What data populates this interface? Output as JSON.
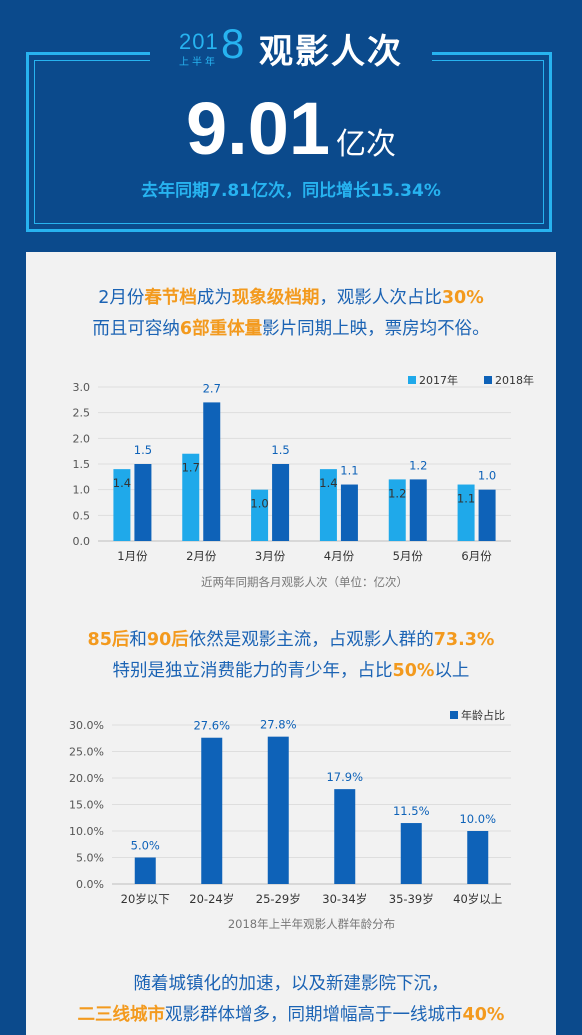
{
  "header": {
    "year_top": "201",
    "year_bottom": "上半年",
    "year_big": "8",
    "title": "观影人次",
    "big_number": "9.01",
    "big_unit": "亿次",
    "sub_line": "去年同期7.81亿次，同比增长15.34%"
  },
  "section1": {
    "line1": [
      {
        "t": "2月份",
        "hl": false
      },
      {
        "t": "春节档",
        "hl": true
      },
      {
        "t": "成为",
        "hl": false
      },
      {
        "t": "现象级档期",
        "hl": true
      },
      {
        "t": "，观影人次占比",
        "hl": false
      },
      {
        "t": "30%",
        "hl": true
      }
    ],
    "line2": [
      {
        "t": "而且可容纳",
        "hl": false
      },
      {
        "t": "6部重体量",
        "hl": true
      },
      {
        "t": "影片同期上映，票房均不俗。",
        "hl": false
      }
    ]
  },
  "section2": {
    "line1": [
      {
        "t": "85后",
        "hl": true
      },
      {
        "t": "和",
        "hl": false
      },
      {
        "t": "90后",
        "hl": true
      },
      {
        "t": "依然是观影主流，占观影人群的",
        "hl": false
      },
      {
        "t": "73.3%",
        "hl": true
      }
    ],
    "line2": [
      {
        "t": "特别是独立消费能力的青少年，占比",
        "hl": false
      },
      {
        "t": "50%",
        "hl": true
      },
      {
        "t": "以上",
        "hl": false
      }
    ]
  },
  "section3": {
    "line1": [
      {
        "t": "随着城镇化的加速，以及新建影院下沉，",
        "hl": false
      }
    ],
    "line2": [
      {
        "t": "二三线城市",
        "hl": true
      },
      {
        "t": "观影群体增多，同期增幅高于一线城市",
        "hl": false
      },
      {
        "t": "40%",
        "hl": true
      }
    ]
  },
  "colors": {
    "background": "#0b4a8c",
    "accent": "#27b3f0",
    "highlight": "#f39a1e",
    "text_blue": "#1b63b4",
    "series_2017": "#1fa9ea",
    "series_2018": "#0e62b8"
  },
  "chart_data": [
    {
      "type": "bar",
      "categories": [
        "1月份",
        "2月份",
        "3月份",
        "4月份",
        "5月份",
        "6月份"
      ],
      "series": [
        {
          "name": "2017年",
          "values": [
            1.4,
            1.7,
            1.0,
            1.4,
            1.2,
            1.1
          ],
          "color": "#1fa9ea"
        },
        {
          "name": "2018年",
          "values": [
            1.5,
            2.7,
            1.5,
            1.1,
            1.2,
            1.0
          ],
          "color": "#0e62b8"
        }
      ],
      "value_labels_2017": [
        "1.4",
        "1.7",
        "1.0",
        "1.4",
        "1.2",
        "1.1"
      ],
      "value_labels_2018": [
        "1.5",
        "2.7",
        "1.5",
        "1.1",
        "1.2",
        "1.0"
      ],
      "yticks": [
        "0.0",
        "0.5",
        "1.0",
        "1.5",
        "2.0",
        "2.5",
        "3.0"
      ],
      "ylim": [
        0,
        3
      ],
      "caption": "近两年同期各月观影人次（单位：亿次）",
      "grid": true,
      "legend": "top-right"
    },
    {
      "type": "bar",
      "categories": [
        "20岁以下",
        "20-24岁",
        "25-29岁",
        "30-34岁",
        "35-39岁",
        "40岁以上"
      ],
      "series": [
        {
          "name": "年龄占比",
          "values": [
            5.0,
            27.6,
            27.8,
            17.9,
            11.5,
            10.0
          ],
          "color": "#0e62b8"
        }
      ],
      "value_labels": [
        "5.0%",
        "27.6%",
        "27.8%",
        "17.9%",
        "11.5%",
        "10.0%"
      ],
      "yticks": [
        "0.0%",
        "5.0%",
        "10.0%",
        "15.0%",
        "20.0%",
        "25.0%",
        "30.0%"
      ],
      "ylim": [
        0,
        30
      ],
      "caption": "2018年上半年观影人群年龄分布",
      "grid": true,
      "legend": "top-right"
    }
  ]
}
